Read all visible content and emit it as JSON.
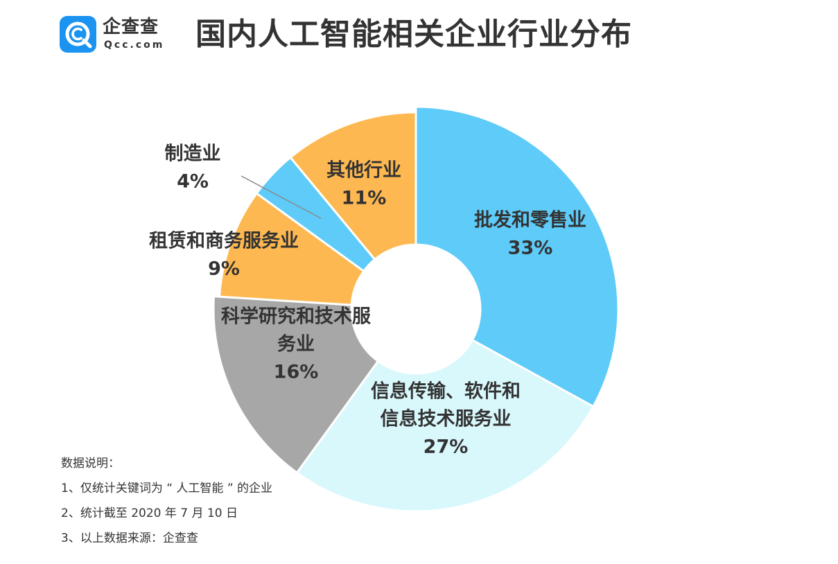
{
  "header": {
    "logo_text": "企查查",
    "logo_sub": "Qcc.com",
    "title": "国内人工智能相关企业行业分布"
  },
  "chart_data": {
    "type": "pie",
    "slices": [
      {
        "label": "批发和零售业",
        "label_lines": [
          "批发和零售业"
        ],
        "value": 33,
        "value_text": "33%",
        "color": "#5ecbf9"
      },
      {
        "label": "信息传输、软件和信息技术服务业",
        "label_lines": [
          "信息传输、软件和",
          "信息技术服务业"
        ],
        "value": 27,
        "value_text": "27%",
        "color": "#d9f8fc"
      },
      {
        "label": "科学研究和技术服务业",
        "label_lines": [
          "科学研究和技术服",
          "务业"
        ],
        "value": 16,
        "value_text": "16%",
        "color": "#a7a7a7"
      },
      {
        "label": "租赁和商务服务业",
        "label_lines": [
          "租赁和商务服务业"
        ],
        "value": 9,
        "value_text": "9%",
        "color": "#feb851"
      },
      {
        "label": "制造业",
        "label_lines": [
          "制造业"
        ],
        "value": 4,
        "value_text": "4%",
        "color": "#5ecbf9"
      },
      {
        "label": "其他行业",
        "label_lines": [
          "其他行业"
        ],
        "value": 11,
        "value_text": "11%",
        "color": "#feb851"
      }
    ]
  },
  "notes": {
    "heading": "数据说明：",
    "items": [
      "1、仅统计关键词为 “ 人工智能 ” 的企业",
      "2、统计截至 2020 年 7 月 10 日",
      "3、以上数据来源：企查查"
    ]
  },
  "colors": {
    "brand_blue": "#1a93f1",
    "slice_border": "#ffffff",
    "text": "#333333"
  },
  "icons": {
    "logo": "qcc-logo-icon"
  }
}
